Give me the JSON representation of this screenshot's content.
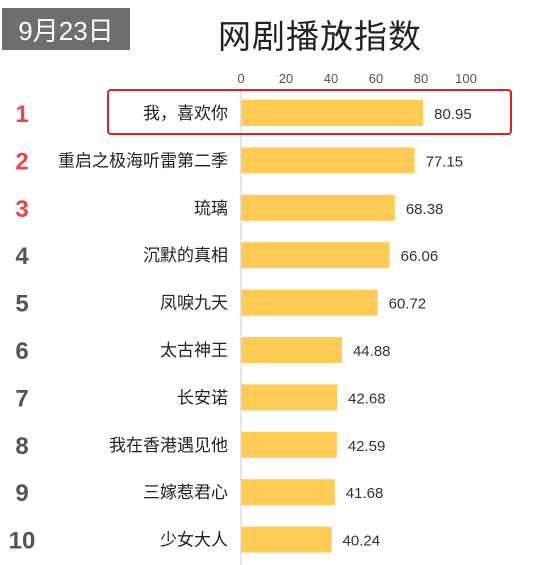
{
  "date": "9月23日",
  "title": "网剧播放指数",
  "colors": {
    "bar": "#ffca55",
    "rank_top": "#e8474c",
    "rank_rest": "#555555",
    "highlight_border": "#e02020",
    "axis": "#cccccc",
    "badge": "#6e6e6e"
  },
  "chart_data": {
    "type": "bar",
    "orientation": "horizontal",
    "title": "网剧播放指数",
    "xlim": [
      0,
      100
    ],
    "ticks": [
      0,
      20,
      40,
      60,
      80,
      100
    ],
    "ranks": [
      "1",
      "2",
      "3",
      "4",
      "5",
      "6",
      "7",
      "8",
      "9",
      "10"
    ],
    "categories": [
      "我，喜欢你",
      "重启之极海听雷第二季",
      "琉璃",
      "沉默的真相",
      "凤唳九天",
      "太古神王",
      "长安诺",
      "我在香港遇见他",
      "三嫁惹君心",
      "少女大人"
    ],
    "values": [
      80.95,
      77.15,
      68.38,
      66.06,
      60.72,
      44.88,
      42.68,
      42.59,
      41.68,
      40.24
    ],
    "value_labels": [
      "80.95",
      "77.15",
      "68.38",
      "66.06",
      "60.72",
      "44.88",
      "42.68",
      "42.59",
      "41.68",
      "40.24"
    ],
    "highlighted_index": 0
  }
}
